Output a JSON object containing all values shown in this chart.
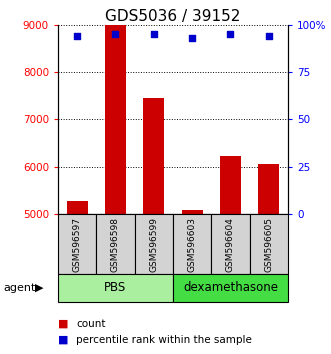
{
  "title": "GDS5036 / 39152",
  "samples": [
    "GSM596597",
    "GSM596598",
    "GSM596599",
    "GSM596603",
    "GSM596604",
    "GSM596605"
  ],
  "counts": [
    5270,
    9000,
    7450,
    5080,
    6230,
    6050
  ],
  "percentile_ranks": [
    94,
    95,
    95,
    93,
    95,
    94
  ],
  "pbs_color": "#AAEEA0",
  "dex_color": "#44DD44",
  "ylim_left": [
    5000,
    9000
  ],
  "ylim_right": [
    0,
    100
  ],
  "yticks_left": [
    5000,
    6000,
    7000,
    8000,
    9000
  ],
  "yticks_right": [
    0,
    25,
    50,
    75,
    100
  ],
  "yticklabels_right": [
    "0",
    "25",
    "50",
    "75",
    "100%"
  ],
  "bar_color": "#CC0000",
  "dot_color": "#0000CC",
  "bar_width": 0.55,
  "legend_count_label": "count",
  "legend_percentile_label": "percentile rank within the sample",
  "title_fontsize": 11,
  "tick_fontsize": 7.5,
  "sample_fontsize": 6.5,
  "group_fontsize": 8.5
}
